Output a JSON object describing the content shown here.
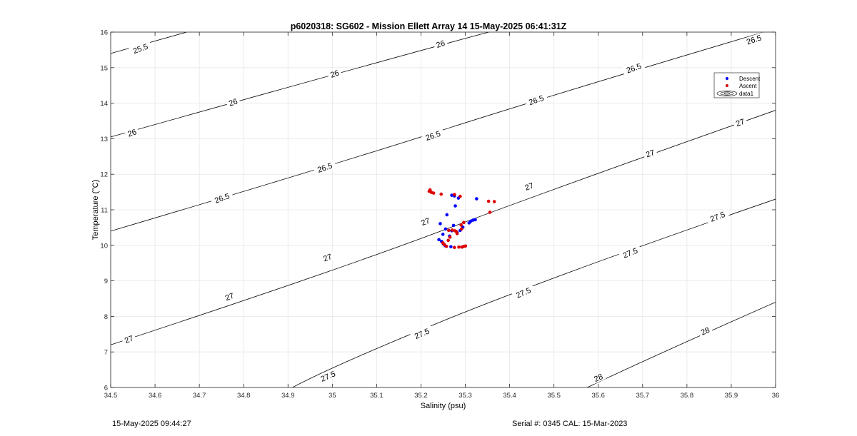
{
  "footer": {
    "timestamp": "15-May-2025 09:44:27",
    "serial": "Serial #: 0345  CAL: 15-Mar-2023"
  },
  "colors": {
    "descent": "#0000ff",
    "ascent": "#dd0000",
    "contour": "#000000",
    "grid": "#e6e6e6"
  },
  "chart_data": {
    "type": "scatter",
    "title": "p6020318: SG602 - Mission Ellett Array 14 15-May-2025 06:41:31Z",
    "xlabel": "Salinity (psu)",
    "ylabel": "Temperature (°C)",
    "xlim": [
      34.5,
      36
    ],
    "ylim": [
      6,
      16
    ],
    "xticks": [
      "34.5",
      "34.6",
      "34.7",
      "34.8",
      "34.9",
      "35",
      "35.1",
      "35.2",
      "35.3",
      "35.4",
      "35.5",
      "35.6",
      "35.7",
      "35.8",
      "35.9",
      "36"
    ],
    "yticks": [
      "6",
      "7",
      "8",
      "9",
      "10",
      "11",
      "12",
      "13",
      "14",
      "15",
      "16"
    ],
    "grid": true,
    "legend": {
      "position": "top-right",
      "entries": [
        "Descent",
        "Ascent",
        "data1"
      ]
    },
    "contours": [
      {
        "level": "25.5",
        "points": [
          [
            34.5,
            15.4
          ],
          [
            34.7,
            16.1
          ]
        ],
        "labels": [
          [
            34.567,
            15.54,
            20
          ]
        ]
      },
      {
        "level": "26",
        "points": [
          [
            34.5,
            13.05
          ],
          [
            35.3,
            15.85
          ],
          [
            35.4,
            16.15
          ]
        ],
        "labels": [
          [
            34.548,
            13.17,
            19
          ],
          [
            34.776,
            14.03,
            19
          ],
          [
            35.005,
            14.83,
            19
          ],
          [
            35.244,
            15.67,
            18
          ]
        ]
      },
      {
        "level": "26.5",
        "points": [
          [
            34.5,
            10.4
          ],
          [
            35.0,
            12.25
          ],
          [
            35.5,
            14.25
          ],
          [
            36.0,
            16.1
          ]
        ],
        "labels": [
          [
            34.751,
            11.33,
            20
          ],
          [
            34.983,
            12.19,
            19
          ],
          [
            35.227,
            13.09,
            19
          ],
          [
            35.46,
            14.09,
            19
          ],
          [
            35.68,
            14.99,
            19
          ],
          [
            35.951,
            15.79,
            18
          ]
        ]
      },
      {
        "level": "27",
        "points": [
          [
            34.5,
            7.2
          ],
          [
            35.0,
            9.25
          ],
          [
            35.5,
            11.6
          ],
          [
            36.0,
            13.8
          ]
        ],
        "labels": [
          [
            34.541,
            7.36,
            22
          ],
          [
            34.768,
            8.56,
            21
          ],
          [
            34.989,
            9.66,
            21
          ],
          [
            35.21,
            10.67,
            20
          ],
          [
            35.444,
            11.66,
            20
          ],
          [
            35.717,
            12.59,
            19
          ],
          [
            35.92,
            13.46,
            19
          ]
        ]
      },
      {
        "level": "27.5",
        "points": [
          [
            34.91,
            6
          ],
          [
            35.0,
            6.6
          ],
          [
            35.5,
            9.15
          ],
          [
            36.0,
            11.3
          ]
        ],
        "labels": [
          [
            34.99,
            6.32,
            24
          ],
          [
            35.202,
            7.52,
            24
          ],
          [
            35.431,
            8.67,
            23
          ],
          [
            35.672,
            9.79,
            22
          ],
          [
            35.869,
            10.81,
            21
          ]
        ]
      },
      {
        "level": "28",
        "points": [
          [
            35.575,
            6
          ],
          [
            35.7,
            6.75
          ],
          [
            36.0,
            8.4
          ]
        ],
        "labels": [
          [
            35.6,
            6.28,
            24
          ],
          [
            35.841,
            7.59,
            23
          ]
        ]
      }
    ],
    "series": [
      {
        "name": "Descent",
        "points": [
          [
            35.2695,
            11.41
          ],
          [
            35.2755,
            11.39
          ],
          [
            35.2845,
            11.33
          ],
          [
            35.3255,
            11.31
          ],
          [
            35.2775,
            11.11
          ],
          [
            35.2585,
            10.86
          ],
          [
            35.2435,
            10.61
          ],
          [
            35.2555,
            10.46
          ],
          [
            35.2735,
            10.56
          ],
          [
            35.2695,
            10.41
          ],
          [
            35.2815,
            10.36
          ],
          [
            35.2945,
            10.51
          ],
          [
            35.2885,
            10.42
          ],
          [
            35.3085,
            10.63
          ],
          [
            35.3125,
            10.68
          ],
          [
            35.3175,
            10.71
          ],
          [
            35.3225,
            10.72
          ],
          [
            35.2495,
            10.31
          ],
          [
            35.2645,
            10.26
          ],
          [
            35.2405,
            10.16
          ],
          [
            35.2465,
            10.11
          ],
          [
            35.2505,
            10.04
          ],
          [
            35.2545,
            9.99
          ],
          [
            35.2675,
            9.96
          ]
        ]
      },
      {
        "name": "Ascent",
        "points": [
          [
            35.2185,
            11.52
          ],
          [
            35.2205,
            11.56
          ],
          [
            35.2235,
            11.49
          ],
          [
            35.2285,
            11.47
          ],
          [
            35.2455,
            11.44
          ],
          [
            35.2755,
            11.43
          ],
          [
            35.2885,
            11.38
          ],
          [
            35.3525,
            11.24
          ],
          [
            35.3655,
            11.23
          ],
          [
            35.3555,
            10.93
          ],
          [
            35.2965,
            10.64
          ],
          [
            35.2905,
            10.57
          ],
          [
            35.2915,
            10.46
          ],
          [
            35.2705,
            10.43
          ],
          [
            35.2765,
            10.41
          ],
          [
            35.2795,
            10.39
          ],
          [
            35.2625,
            10.42
          ],
          [
            35.2815,
            10.33
          ],
          [
            35.2655,
            10.23
          ],
          [
            35.2615,
            10.14
          ],
          [
            35.2495,
            10.07
          ],
          [
            35.2525,
            10.02
          ],
          [
            35.2575,
            9.97
          ],
          [
            35.2755,
            9.94
          ],
          [
            35.2855,
            9.95
          ],
          [
            35.2925,
            9.95
          ],
          [
            35.2965,
            9.97
          ],
          [
            35.3005,
            9.98
          ]
        ]
      }
    ]
  }
}
